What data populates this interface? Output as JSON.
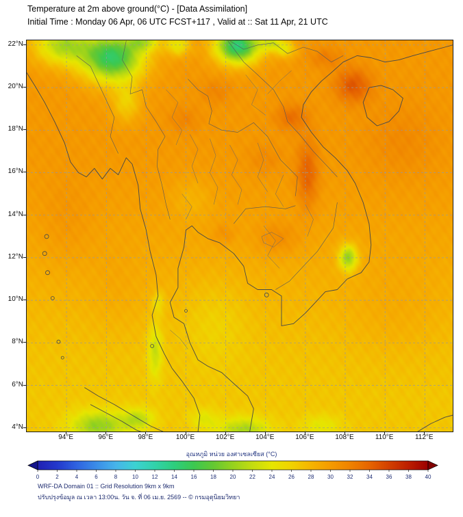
{
  "header": {
    "title_line1": "Temperature at 2m above ground(°C) - [Data Assimilation]",
    "title_line2": "Initial Time : Monday 06 Apr, 06 UTC FCST+117 , Valid at :: Sat 11 Apr, 21 UTC"
  },
  "axes": {
    "lat_ticks": [
      {
        "value": 22,
        "label": "22°N"
      },
      {
        "value": 20,
        "label": "20°N"
      },
      {
        "value": 18,
        "label": "18°N"
      },
      {
        "value": 16,
        "label": "16°N"
      },
      {
        "value": 14,
        "label": "14°N"
      },
      {
        "value": 12,
        "label": "12°N"
      },
      {
        "value": 10,
        "label": "10°N"
      },
      {
        "value": 8,
        "label": "8°N"
      },
      {
        "value": 6,
        "label": "6°N"
      },
      {
        "value": 4,
        "label": "4°N"
      }
    ],
    "lon_ticks": [
      {
        "value": 94,
        "label": "94°E"
      },
      {
        "value": 96,
        "label": "96°E"
      },
      {
        "value": 98,
        "label": "98°E"
      },
      {
        "value": 100,
        "label": "100°E"
      },
      {
        "value": 102,
        "label": "102°E"
      },
      {
        "value": 104,
        "label": "104°E"
      },
      {
        "value": 106,
        "label": "106°E"
      },
      {
        "value": 108,
        "label": "108°E"
      },
      {
        "value": 110,
        "label": "110°E"
      },
      {
        "value": 112,
        "label": "112°E"
      }
    ]
  },
  "colorbar": {
    "label": "อุณหภูมิ หน่วย องศาเซลเซียส (°C)",
    "ticks": [
      0,
      2,
      4,
      6,
      8,
      10,
      12,
      14,
      16,
      18,
      20,
      22,
      24,
      26,
      28,
      30,
      32,
      34,
      36,
      38,
      40
    ],
    "arrow_left_color": "#14148c",
    "arrow_right_color": "#820000"
  },
  "footer": {
    "line1": "WRF-DA Domain 01 :: Grid Resolution 9km x 9km",
    "line2": "ปรับปรุงข้อมูล ณ เวลา 13:00น. วัน จ. ที่ 06 เม.ย. 2569 -- © กรมอุตุนิยมวิทยา"
  },
  "chart_data": {
    "type": "heatmap",
    "title": "Temperature at 2m above ground (°C)",
    "units": "°C",
    "extent": {
      "lon_min": 92.0,
      "lon_max": 113.4,
      "lat_min": 3.83,
      "lat_max": 22.22
    },
    "value_range": [
      0,
      40
    ],
    "grid": "dashed, every 2 degrees",
    "legend_position": "bottom colorbar with end arrows",
    "colormap": [
      {
        "v": 0,
        "c": "#2020b2"
      },
      {
        "v": 2,
        "c": "#2338cc"
      },
      {
        "v": 4,
        "c": "#2f63e0"
      },
      {
        "v": 6,
        "c": "#3a8ce8"
      },
      {
        "v": 8,
        "c": "#46b4ea"
      },
      {
        "v": 10,
        "c": "#3cd2d2"
      },
      {
        "v": 12,
        "c": "#32d2aa"
      },
      {
        "v": 14,
        "c": "#2dce7d"
      },
      {
        "v": 16,
        "c": "#3cc850"
      },
      {
        "v": 18,
        "c": "#64c832"
      },
      {
        "v": 20,
        "c": "#96d21e"
      },
      {
        "v": 22,
        "c": "#c3dc0f"
      },
      {
        "v": 24,
        "c": "#e6e600"
      },
      {
        "v": 26,
        "c": "#f0d200"
      },
      {
        "v": 28,
        "c": "#f5b400"
      },
      {
        "v": 30,
        "c": "#f59b00"
      },
      {
        "v": 32,
        "c": "#ef8200"
      },
      {
        "v": 34,
        "c": "#e66400"
      },
      {
        "v": 36,
        "c": "#d24000"
      },
      {
        "v": 38,
        "c": "#bc1e00"
      },
      {
        "v": 40,
        "c": "#9b0000"
      }
    ],
    "field": {
      "base": {
        "t_south": 26.8,
        "t_north": 30.2,
        "lat_start": 5.0,
        "lat_span": 13.0
      },
      "anomalies": [
        [
          96.3,
          21.4,
          1.5,
          1.1,
          -15
        ],
        [
          93.8,
          22.0,
          1.4,
          0.9,
          -9
        ],
        [
          97.0,
          19.3,
          0.7,
          0.9,
          -4
        ],
        [
          97.9,
          22.2,
          0.8,
          0.5,
          -7
        ],
        [
          99.6,
          22.0,
          0.6,
          0.5,
          -6
        ],
        [
          102.6,
          21.95,
          1.1,
          0.8,
          -16
        ],
        [
          104.3,
          22.1,
          0.6,
          0.4,
          -6
        ],
        [
          105.0,
          21.8,
          0.5,
          0.4,
          -5
        ],
        [
          108.15,
          12.0,
          0.45,
          0.6,
          -9
        ],
        [
          98.45,
          7.6,
          0.35,
          1.3,
          -5
        ],
        [
          98.6,
          9.9,
          0.3,
          0.5,
          -3
        ],
        [
          95.6,
          4.1,
          1.4,
          0.7,
          -7
        ],
        [
          97.6,
          4.4,
          0.8,
          0.5,
          -5
        ],
        [
          102.9,
          3.9,
          1.3,
          0.6,
          -6
        ],
        [
          100.9,
          4.4,
          0.7,
          0.5,
          -3
        ],
        [
          106.8,
          4.1,
          1.0,
          0.5,
          -3
        ],
        [
          101.5,
          9.0,
          1.6,
          2.0,
          -1.5
        ],
        [
          100.3,
          14.8,
          1.0,
          1.0,
          -1.5
        ],
        [
          106.1,
          15.9,
          0.55,
          1.6,
          4
        ],
        [
          105.3,
          18.6,
          0.8,
          0.6,
          3
        ],
        [
          108.4,
          20.1,
          0.9,
          0.8,
          4.5
        ],
        [
          107.0,
          21.4,
          0.8,
          0.5,
          2
        ],
        [
          104.6,
          12.9,
          1.1,
          0.8,
          2
        ],
        [
          101.9,
          13.1,
          0.6,
          0.5,
          1.5
        ],
        [
          99.9,
          18.5,
          0.8,
          0.6,
          1.5
        ],
        [
          101.5,
          19.8,
          0.8,
          0.6,
          1.5
        ],
        [
          104.0,
          16.6,
          0.9,
          0.7,
          1.2
        ],
        [
          110.8,
          17.5,
          1.8,
          1.8,
          1.2
        ],
        [
          94.0,
          13.5,
          1.4,
          2.2,
          1.0
        ],
        [
          96.5,
          10.5,
          1.5,
          2.0,
          0.8
        ],
        [
          110.5,
          9.5,
          2.4,
          2.4,
          1.0
        ]
      ]
    }
  }
}
